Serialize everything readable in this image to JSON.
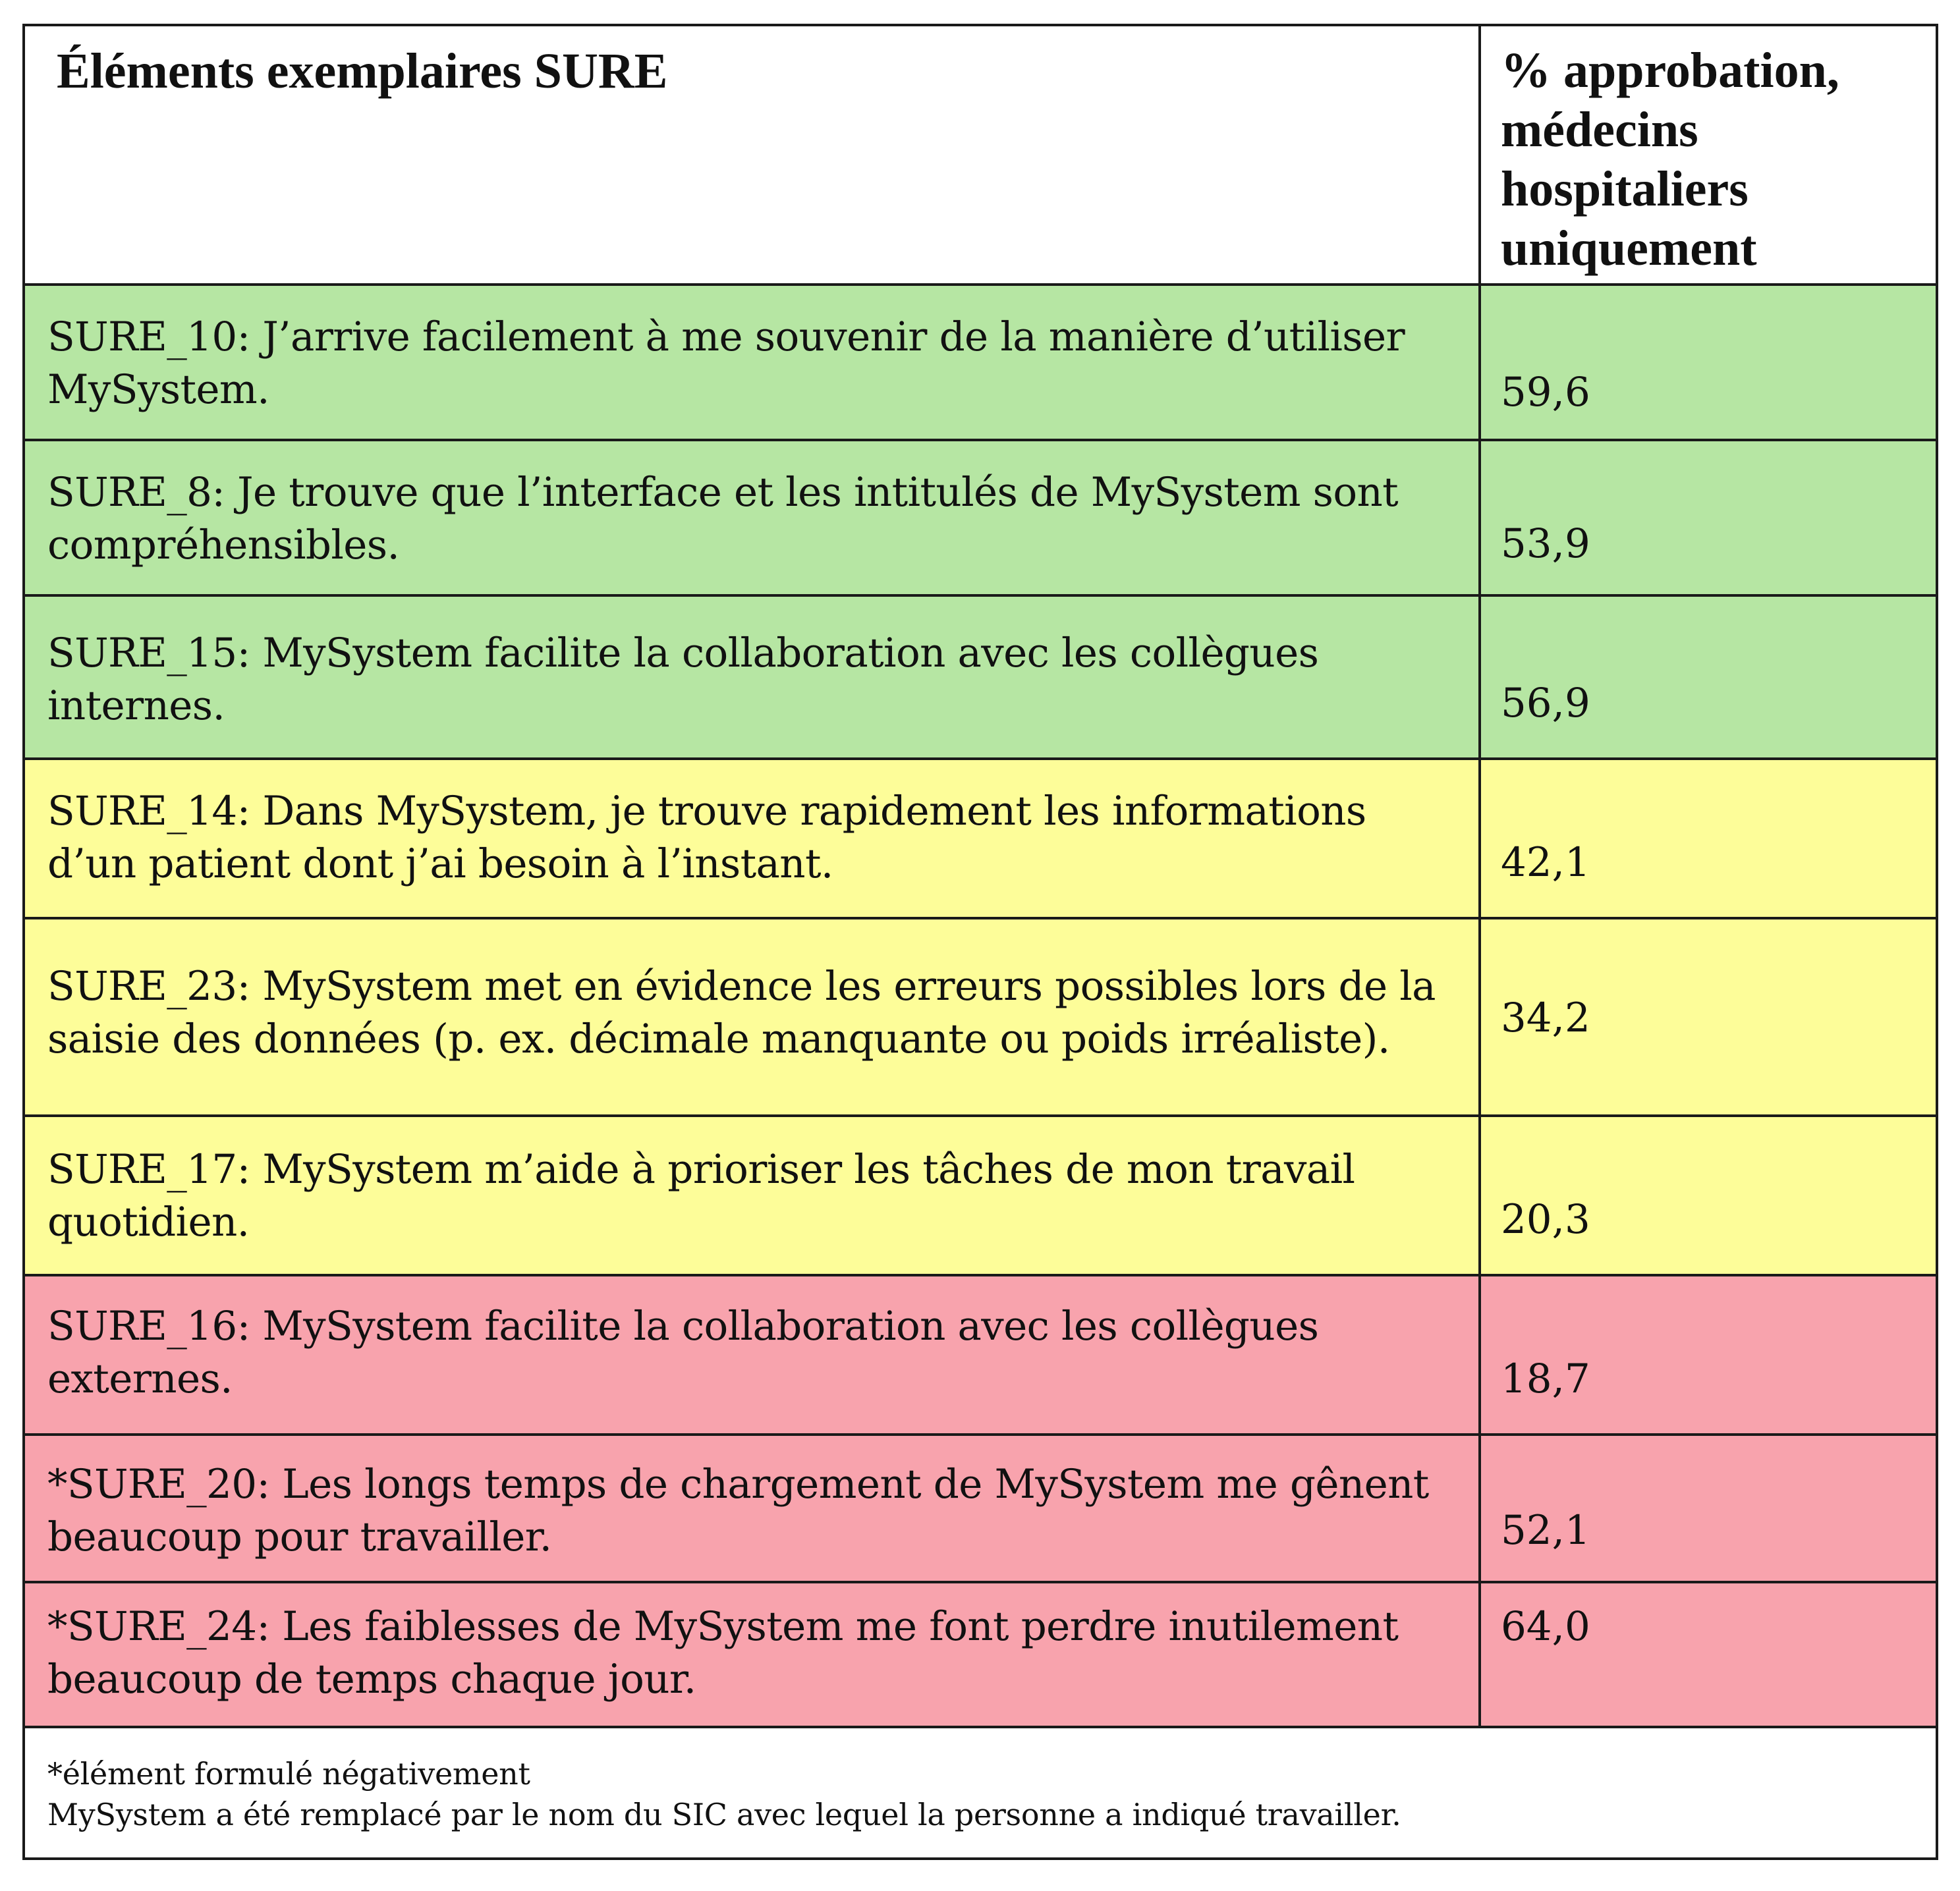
{
  "header": {
    "items_title": "Éléments exemplaires SURE",
    "pct_title": "% approbation,\nmédecins\nhospitaliers\nuniquement"
  },
  "colors": {
    "green": "#b6e6a3",
    "yellow": "#fdfd99",
    "red": "#f8a3ad"
  },
  "rows": [
    {
      "item": "SURE_10: J’arrive facilement à me souvenir de la manière d’utiliser MySystem.",
      "value": "59,6",
      "color": "green"
    },
    {
      "item": "SURE_8: Je trouve que l’interface et les intitulés de MySystem sont compréhensibles.",
      "value": "53,9",
      "color": "green"
    },
    {
      "item": "SURE_15: MySystem facilite la collaboration avec les collègues internes.",
      "value": "56,9",
      "color": "green"
    },
    {
      "item": "SURE_14: Dans MySystem, je trouve rapidement les informations d’un patient dont j’ai besoin à l’instant.",
      "value": "42,1",
      "color": "yellow"
    },
    {
      "item": "SURE_23: MySystem met en évidence les erreurs possibles lors de la saisie des données (p. ex. décimale manquante ou poids irréaliste).",
      "value": "34,2",
      "color": "yellow"
    },
    {
      "item": "SURE_17: MySystem m’aide à prioriser les tâches de mon travail quotidien.",
      "value": "20,3",
      "color": "yellow"
    },
    {
      "item": "SURE_16: MySystem facilite la collaboration avec les collègues externes.",
      "value": "18,7",
      "color": "red"
    },
    {
      "item": "*SURE_20: Les longs temps de chargement de MySystem me gênent beaucoup pour travailler.",
      "value": "52,1",
      "color": "red"
    },
    {
      "item": "*SURE_24: Les faiblesses de MySystem me font perdre inutilement beaucoup de temps chaque jour.",
      "value": "64,0",
      "color": "red"
    }
  ],
  "footnotes": {
    "negative_note": "*élément formulé négativement",
    "name_note": "MySystem a été remplacé par le nom du SIC avec lequel la personne a indiqué travailler."
  }
}
